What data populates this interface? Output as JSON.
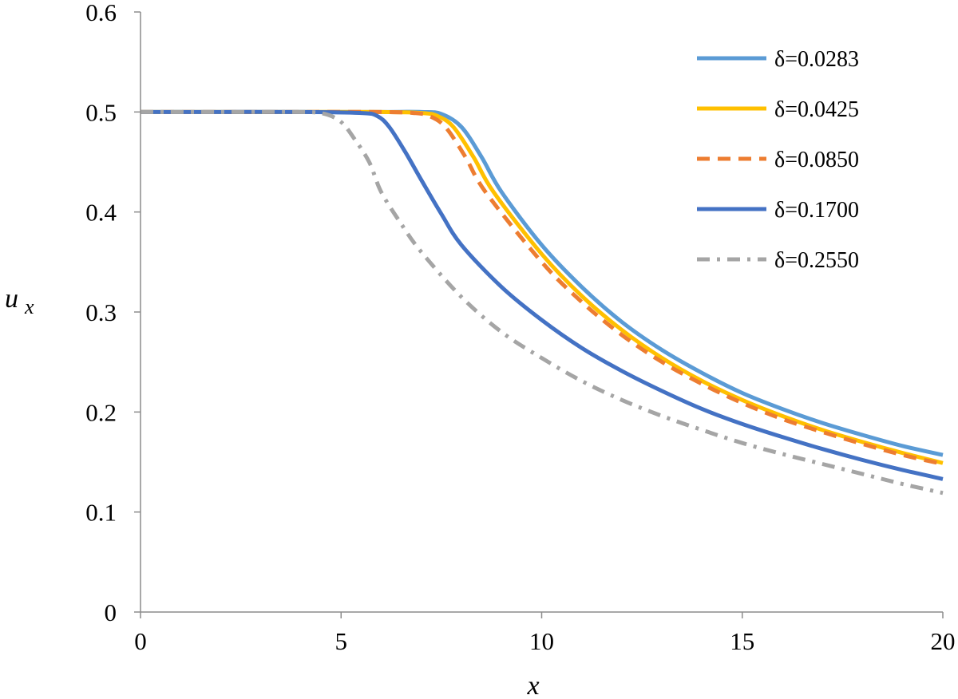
{
  "chart_data": {
    "type": "line",
    "title": "",
    "xlabel": "x",
    "ylabel": "u",
    "ylabel_sub": "x",
    "xlim": [
      0,
      20
    ],
    "ylim": [
      0,
      0.6
    ],
    "xticks": [
      0,
      5,
      10,
      15,
      20
    ],
    "xtick_labels": [
      "0",
      "5",
      "10",
      "15",
      "20"
    ],
    "yticks": [
      0,
      0.1,
      0.2,
      0.3,
      0.4,
      0.5,
      0.6
    ],
    "ytick_labels": [
      "0",
      "0.1",
      "0.2",
      "0.3",
      "0.4",
      "0.5",
      "0.6"
    ],
    "grid": false,
    "legend_position": "top-right",
    "series": [
      {
        "name": "δ=0.0283",
        "color": "#5B9BD5",
        "dash": "solid",
        "x": [
          0,
          2,
          4,
          6,
          7,
          7.5,
          8,
          8.5,
          9,
          10,
          11,
          12,
          13,
          14,
          15,
          16,
          17,
          18,
          19,
          20
        ],
        "y": [
          0.5,
          0.5,
          0.5,
          0.5,
          0.5,
          0.498,
          0.485,
          0.455,
          0.42,
          0.367,
          0.325,
          0.29,
          0.262,
          0.239,
          0.219,
          0.203,
          0.189,
          0.177,
          0.166,
          0.157
        ]
      },
      {
        "name": "δ=0.0425",
        "color": "#FFC000",
        "dash": "solid",
        "x": [
          0,
          2,
          4,
          6,
          7,
          7.4,
          7.8,
          8.3,
          8.8,
          10,
          11,
          12,
          13,
          14,
          15,
          16,
          17,
          18,
          19,
          20
        ],
        "y": [
          0.5,
          0.5,
          0.5,
          0.5,
          0.499,
          0.496,
          0.485,
          0.455,
          0.42,
          0.358,
          0.316,
          0.282,
          0.254,
          0.231,
          0.212,
          0.196,
          0.182,
          0.17,
          0.159,
          0.149
        ]
      },
      {
        "name": "δ=0.0850",
        "color": "#ED7D31",
        "dash": "dashed",
        "x": [
          0,
          2,
          4,
          6,
          6.8,
          7.2,
          7.6,
          8.1,
          8.6,
          10,
          11,
          12,
          13,
          14,
          15,
          16,
          17,
          18,
          19,
          20
        ],
        "y": [
          0.5,
          0.5,
          0.5,
          0.5,
          0.499,
          0.496,
          0.485,
          0.455,
          0.42,
          0.35,
          0.31,
          0.277,
          0.25,
          0.228,
          0.209,
          0.193,
          0.18,
          0.168,
          0.157,
          0.148
        ]
      },
      {
        "name": "δ=0.1700",
        "color": "#4472C4",
        "dash": "solid",
        "x": [
          0,
          2,
          4,
          5.5,
          5.9,
          6.2,
          6.6,
          7,
          7.5,
          8,
          9,
          10,
          11,
          12,
          13,
          14,
          15,
          16,
          17,
          18,
          19,
          20
        ],
        "y": [
          0.5,
          0.5,
          0.5,
          0.499,
          0.496,
          0.485,
          0.46,
          0.432,
          0.398,
          0.367,
          0.325,
          0.292,
          0.264,
          0.241,
          0.221,
          0.203,
          0.188,
          0.175,
          0.163,
          0.152,
          0.142,
          0.133
        ]
      },
      {
        "name": "δ=0.2550",
        "color": "#A5A5A5",
        "dash": "dashdot",
        "x": [
          0,
          2,
          4,
          4.6,
          5,
          5.3,
          5.7,
          6,
          6.5,
          7,
          8,
          9,
          10,
          11,
          12,
          13,
          14,
          15,
          16,
          17,
          18,
          19,
          20
        ],
        "y": [
          0.5,
          0.5,
          0.5,
          0.498,
          0.49,
          0.475,
          0.45,
          0.42,
          0.388,
          0.36,
          0.315,
          0.28,
          0.254,
          0.231,
          0.212,
          0.196,
          0.182,
          0.169,
          0.158,
          0.148,
          0.138,
          0.128,
          0.119
        ]
      }
    ]
  }
}
